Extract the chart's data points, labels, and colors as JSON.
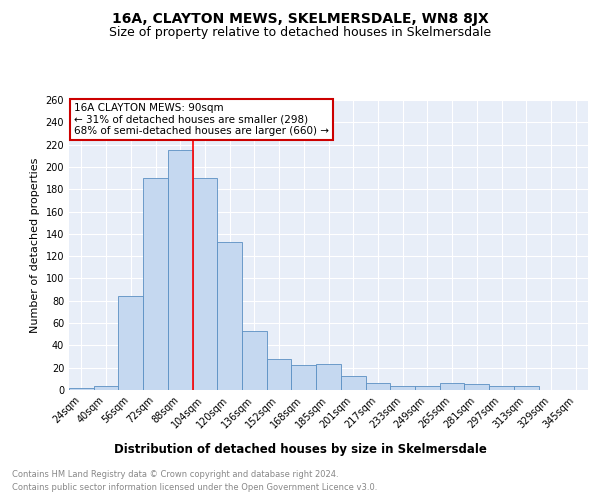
{
  "title": "16A, CLAYTON MEWS, SKELMERSDALE, WN8 8JX",
  "subtitle": "Size of property relative to detached houses in Skelmersdale",
  "xlabel": "Distribution of detached houses by size in Skelmersdale",
  "ylabel": "Number of detached properties",
  "categories": [
    "24sqm",
    "40sqm",
    "56sqm",
    "72sqm",
    "88sqm",
    "104sqm",
    "120sqm",
    "136sqm",
    "152sqm",
    "168sqm",
    "185sqm",
    "201sqm",
    "217sqm",
    "233sqm",
    "249sqm",
    "265sqm",
    "281sqm",
    "297sqm",
    "313sqm",
    "329sqm",
    "345sqm"
  ],
  "values": [
    2,
    4,
    84,
    190,
    215,
    190,
    133,
    53,
    28,
    22,
    23,
    13,
    6,
    4,
    4,
    6,
    5,
    4,
    4,
    0,
    0
  ],
  "bar_color": "#c5d8f0",
  "bar_edge_color": "#5a8fc3",
  "annotation_text": "16A CLAYTON MEWS: 90sqm\n← 31% of detached houses are smaller (298)\n68% of semi-detached houses are larger (660) →",
  "annotation_box_color": "#ffffff",
  "annotation_box_edge": "#cc0000",
  "ylim": [
    0,
    260
  ],
  "yticks": [
    0,
    20,
    40,
    60,
    80,
    100,
    120,
    140,
    160,
    180,
    200,
    220,
    240,
    260
  ],
  "footer_line1": "Contains HM Land Registry data © Crown copyright and database right 2024.",
  "footer_line2": "Contains public sector information licensed under the Open Government Licence v3.0.",
  "plot_bg_color": "#e8eef8",
  "title_fontsize": 10,
  "subtitle_fontsize": 9,
  "tick_fontsize": 7,
  "ylabel_fontsize": 8,
  "xlabel_fontsize": 8.5,
  "annotation_fontsize": 7.5,
  "footer_fontsize": 6,
  "red_line_x": 4.5
}
